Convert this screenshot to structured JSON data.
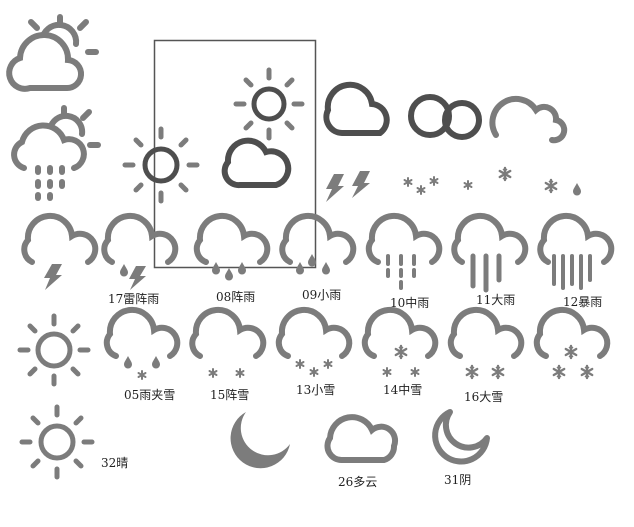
{
  "palette": {
    "icon_gray": "#7c7c7c",
    "icon_dark": "#4e4e4e",
    "background": "#ffffff",
    "label_text": "#222222"
  },
  "icon_names": [
    "partly-cloudy-icon",
    "partly-cloudy-rain-icon",
    "sun-icon",
    "cloud-icon",
    "double-circle-icon",
    "cloud-outline-icon",
    "lightning-icon",
    "snowflake-icon",
    "raindrop-icon",
    "thunderstorm-icon",
    "thundershower-icon",
    "shower-icon",
    "light-rain-icon",
    "moderate-rain-icon",
    "heavy-rain-icon",
    "rainstorm-icon",
    "sleet-icon",
    "snow-shower-icon",
    "light-snow-icon",
    "moderate-snow-icon",
    "heavy-snow-icon",
    "blizzard-icon",
    "moon-filled-icon",
    "moon-outline-icon"
  ],
  "labels": {
    "thundershower": "17雷阵雨",
    "shower": "08阵雨",
    "light_rain": "09小雨",
    "moderate_rain": "10中雨",
    "heavy_rain": "11大雨",
    "rainstorm": "12暴雨",
    "sleet": "05雨夹雪",
    "snow_shower": "15阵雪",
    "light_snow": "13小雪",
    "moderate_snow": "14中雪",
    "heavy_snow": "16大雪",
    "sunny": "32晴",
    "cloudy": "26多云",
    "overcast": "31阴"
  }
}
